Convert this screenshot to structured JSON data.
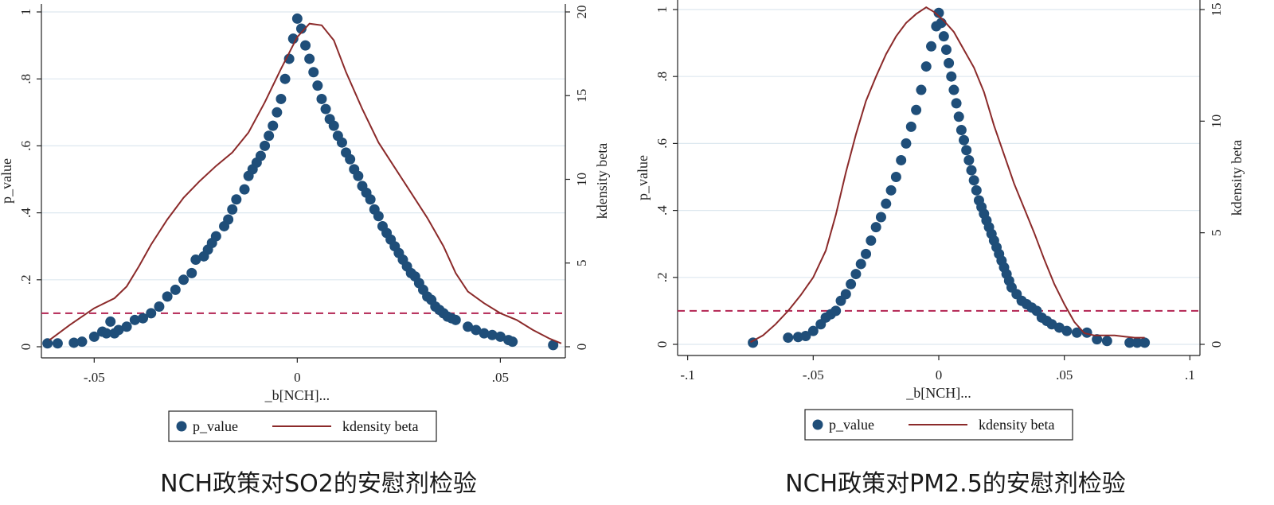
{
  "chart_data": [
    {
      "type": "scatter",
      "caption": "NCH政策对SO2的安慰剂检验",
      "xlabel": "_b[NCH]...",
      "ylabel": "p_value",
      "y2label": "kdensity beta",
      "xlim": [
        -0.063,
        0.066
      ],
      "ylim": [
        0,
        1
      ],
      "y2lim": [
        0,
        20
      ],
      "xticks": [
        {
          "value": -0.05,
          "label": "-.05"
        },
        {
          "value": 0,
          "label": "0"
        },
        {
          "value": 0.05,
          "label": ".05"
        }
      ],
      "yticks": [
        {
          "value": 0,
          "label": "0"
        },
        {
          "value": 0.2,
          "label": ".2"
        },
        {
          "value": 0.4,
          "label": ".4"
        },
        {
          "value": 0.6,
          "label": ".6"
        },
        {
          "value": 0.8,
          "label": ".8"
        },
        {
          "value": 1,
          "label": "1"
        }
      ],
      "y2ticks": [
        {
          "value": 0,
          "label": "0"
        },
        {
          "value": 5,
          "label": "5"
        },
        {
          "value": 10,
          "label": "10"
        },
        {
          "value": 15,
          "label": "15"
        },
        {
          "value": 20,
          "label": "20"
        }
      ],
      "grid": true,
      "reference_line": {
        "y": 0.1,
        "style": "dashed",
        "color": "#b22452"
      },
      "legend": {
        "position": "bottom",
        "entries": [
          {
            "label": "p_value",
            "marker": "dot"
          },
          {
            "label": "kdensity beta",
            "marker": "line"
          }
        ]
      },
      "colors": {
        "points": "#1f4e79",
        "density": "#8b2a2a",
        "grid": "#dde8ef"
      },
      "p_value_points": [
        [
          -0.0615,
          0.01
        ],
        [
          -0.059,
          0.01
        ],
        [
          -0.055,
          0.012
        ],
        [
          -0.053,
          0.015
        ],
        [
          -0.05,
          0.03
        ],
        [
          -0.048,
          0.045
        ],
        [
          -0.047,
          0.04
        ],
        [
          -0.046,
          0.075
        ],
        [
          -0.045,
          0.04
        ],
        [
          -0.044,
          0.05
        ],
        [
          -0.042,
          0.06
        ],
        [
          -0.04,
          0.08
        ],
        [
          -0.038,
          0.085
        ],
        [
          -0.036,
          0.1
        ],
        [
          -0.034,
          0.12
        ],
        [
          -0.032,
          0.15
        ],
        [
          -0.03,
          0.17
        ],
        [
          -0.028,
          0.2
        ],
        [
          -0.026,
          0.22
        ],
        [
          -0.025,
          0.26
        ],
        [
          -0.023,
          0.27
        ],
        [
          -0.022,
          0.29
        ],
        [
          -0.021,
          0.31
        ],
        [
          -0.02,
          0.33
        ],
        [
          -0.018,
          0.36
        ],
        [
          -0.017,
          0.38
        ],
        [
          -0.016,
          0.41
        ],
        [
          -0.015,
          0.44
        ],
        [
          -0.013,
          0.47
        ],
        [
          -0.012,
          0.51
        ],
        [
          -0.011,
          0.53
        ],
        [
          -0.01,
          0.55
        ],
        [
          -0.009,
          0.57
        ],
        [
          -0.008,
          0.6
        ],
        [
          -0.007,
          0.63
        ],
        [
          -0.006,
          0.66
        ],
        [
          -0.005,
          0.7
        ],
        [
          -0.004,
          0.74
        ],
        [
          -0.003,
          0.8
        ],
        [
          -0.002,
          0.86
        ],
        [
          -0.001,
          0.92
        ],
        [
          0,
          0.98
        ],
        [
          0.001,
          0.95
        ],
        [
          0.002,
          0.9
        ],
        [
          0.003,
          0.86
        ],
        [
          0.004,
          0.82
        ],
        [
          0.005,
          0.78
        ],
        [
          0.006,
          0.74
        ],
        [
          0.007,
          0.71
        ],
        [
          0.008,
          0.68
        ],
        [
          0.009,
          0.66
        ],
        [
          0.01,
          0.63
        ],
        [
          0.011,
          0.61
        ],
        [
          0.012,
          0.58
        ],
        [
          0.013,
          0.56
        ],
        [
          0.014,
          0.53
        ],
        [
          0.015,
          0.51
        ],
        [
          0.016,
          0.48
        ],
        [
          0.017,
          0.46
        ],
        [
          0.018,
          0.44
        ],
        [
          0.019,
          0.41
        ],
        [
          0.02,
          0.39
        ],
        [
          0.021,
          0.36
        ],
        [
          0.022,
          0.34
        ],
        [
          0.023,
          0.32
        ],
        [
          0.024,
          0.3
        ],
        [
          0.025,
          0.28
        ],
        [
          0.026,
          0.26
        ],
        [
          0.027,
          0.24
        ],
        [
          0.028,
          0.22
        ],
        [
          0.029,
          0.21
        ],
        [
          0.03,
          0.19
        ],
        [
          0.031,
          0.17
        ],
        [
          0.032,
          0.15
        ],
        [
          0.033,
          0.14
        ],
        [
          0.034,
          0.12
        ],
        [
          0.035,
          0.11
        ],
        [
          0.036,
          0.1
        ],
        [
          0.037,
          0.09
        ],
        [
          0.038,
          0.085
        ],
        [
          0.039,
          0.08
        ],
        [
          0.042,
          0.06
        ],
        [
          0.044,
          0.05
        ],
        [
          0.046,
          0.04
        ],
        [
          0.048,
          0.035
        ],
        [
          0.05,
          0.03
        ],
        [
          0.052,
          0.02
        ],
        [
          0.053,
          0.015
        ],
        [
          0.063,
          0.005
        ]
      ],
      "density_curve": [
        [
          -0.061,
          0.4
        ],
        [
          -0.056,
          1.3
        ],
        [
          -0.05,
          2.3
        ],
        [
          -0.045,
          2.9
        ],
        [
          -0.042,
          3.6
        ],
        [
          -0.039,
          4.8
        ],
        [
          -0.036,
          6.1
        ],
        [
          -0.032,
          7.6
        ],
        [
          -0.028,
          8.9
        ],
        [
          -0.024,
          9.9
        ],
        [
          -0.02,
          10.8
        ],
        [
          -0.016,
          11.6
        ],
        [
          -0.012,
          12.8
        ],
        [
          -0.008,
          14.6
        ],
        [
          -0.004,
          16.6
        ],
        [
          0,
          18.5
        ],
        [
          0.003,
          19.3
        ],
        [
          0.006,
          19.2
        ],
        [
          0.009,
          18.3
        ],
        [
          0.012,
          16.4
        ],
        [
          0.016,
          14.2
        ],
        [
          0.02,
          12.2
        ],
        [
          0.024,
          10.7
        ],
        [
          0.028,
          9.2
        ],
        [
          0.032,
          7.7
        ],
        [
          0.036,
          6.0
        ],
        [
          0.039,
          4.4
        ],
        [
          0.042,
          3.3
        ],
        [
          0.046,
          2.6
        ],
        [
          0.05,
          2.0
        ],
        [
          0.054,
          1.6
        ],
        [
          0.058,
          1.0
        ],
        [
          0.062,
          0.5
        ],
        [
          0.065,
          0.2
        ]
      ]
    },
    {
      "type": "scatter",
      "caption": "NCH政策对PM2.5的安慰剂检验",
      "xlabel": "_b[NCH]...",
      "ylabel": "p_value",
      "y2label": "kdensity beta",
      "xlim": [
        -0.104,
        0.104
      ],
      "ylim": [
        0,
        1
      ],
      "y2lim": [
        0,
        15
      ],
      "xticks": [
        {
          "value": -0.1,
          "label": "-.1"
        },
        {
          "value": -0.05,
          "label": "-.05"
        },
        {
          "value": 0,
          "label": "0"
        },
        {
          "value": 0.05,
          "label": ".05"
        },
        {
          "value": 0.1,
          "label": ".1"
        }
      ],
      "yticks": [
        {
          "value": 0,
          "label": "0"
        },
        {
          "value": 0.2,
          "label": ".2"
        },
        {
          "value": 0.4,
          "label": ".4"
        },
        {
          "value": 0.6,
          "label": ".6"
        },
        {
          "value": 0.8,
          "label": ".8"
        },
        {
          "value": 1,
          "label": "1"
        }
      ],
      "y2ticks": [
        {
          "value": 0,
          "label": "0"
        },
        {
          "value": 5,
          "label": "5"
        },
        {
          "value": 10,
          "label": "10"
        },
        {
          "value": 15,
          "label": "15"
        }
      ],
      "grid": true,
      "reference_line": {
        "y": 0.1,
        "style": "dashed",
        "color": "#b22452"
      },
      "legend": {
        "position": "bottom",
        "entries": [
          {
            "label": "p_value",
            "marker": "dot"
          },
          {
            "label": "kdensity beta",
            "marker": "line"
          }
        ]
      },
      "colors": {
        "points": "#1f4e79",
        "density": "#8b2a2a",
        "grid": "#dde8ef"
      },
      "p_value_points": [
        [
          -0.074,
          0.005
        ],
        [
          -0.06,
          0.02
        ],
        [
          -0.056,
          0.022
        ],
        [
          -0.053,
          0.025
        ],
        [
          -0.05,
          0.04
        ],
        [
          -0.047,
          0.06
        ],
        [
          -0.045,
          0.08
        ],
        [
          -0.043,
          0.09
        ],
        [
          -0.041,
          0.1
        ],
        [
          -0.039,
          0.13
        ],
        [
          -0.037,
          0.15
        ],
        [
          -0.035,
          0.18
        ],
        [
          -0.033,
          0.21
        ],
        [
          -0.031,
          0.24
        ],
        [
          -0.029,
          0.27
        ],
        [
          -0.027,
          0.31
        ],
        [
          -0.025,
          0.35
        ],
        [
          -0.023,
          0.38
        ],
        [
          -0.021,
          0.42
        ],
        [
          -0.019,
          0.46
        ],
        [
          -0.017,
          0.5
        ],
        [
          -0.015,
          0.55
        ],
        [
          -0.013,
          0.6
        ],
        [
          -0.011,
          0.65
        ],
        [
          -0.009,
          0.7
        ],
        [
          -0.007,
          0.76
        ],
        [
          -0.005,
          0.83
        ],
        [
          -0.003,
          0.89
        ],
        [
          -0.001,
          0.95
        ],
        [
          0,
          0.99
        ],
        [
          0.001,
          0.96
        ],
        [
          0.002,
          0.92
        ],
        [
          0.003,
          0.88
        ],
        [
          0.004,
          0.84
        ],
        [
          0.005,
          0.8
        ],
        [
          0.006,
          0.76
        ],
        [
          0.007,
          0.72
        ],
        [
          0.008,
          0.68
        ],
        [
          0.009,
          0.64
        ],
        [
          0.01,
          0.61
        ],
        [
          0.011,
          0.58
        ],
        [
          0.012,
          0.55
        ],
        [
          0.013,
          0.52
        ],
        [
          0.014,
          0.49
        ],
        [
          0.015,
          0.46
        ],
        [
          0.016,
          0.43
        ],
        [
          0.017,
          0.41
        ],
        [
          0.018,
          0.39
        ],
        [
          0.019,
          0.37
        ],
        [
          0.02,
          0.35
        ],
        [
          0.021,
          0.33
        ],
        [
          0.022,
          0.31
        ],
        [
          0.023,
          0.29
        ],
        [
          0.024,
          0.27
        ],
        [
          0.025,
          0.25
        ],
        [
          0.026,
          0.23
        ],
        [
          0.027,
          0.21
        ],
        [
          0.028,
          0.19
        ],
        [
          0.029,
          0.17
        ],
        [
          0.031,
          0.15
        ],
        [
          0.033,
          0.13
        ],
        [
          0.035,
          0.12
        ],
        [
          0.037,
          0.11
        ],
        [
          0.039,
          0.1
        ],
        [
          0.041,
          0.08
        ],
        [
          0.043,
          0.07
        ],
        [
          0.045,
          0.06
        ],
        [
          0.048,
          0.05
        ],
        [
          0.051,
          0.04
        ],
        [
          0.055,
          0.035
        ],
        [
          0.059,
          0.035
        ],
        [
          0.063,
          0.015
        ],
        [
          0.067,
          0.01
        ],
        [
          0.076,
          0.005
        ],
        [
          0.079,
          0.005
        ],
        [
          0.082,
          0.005
        ]
      ],
      "density_curve": [
        [
          -0.075,
          0.1
        ],
        [
          -0.07,
          0.4
        ],
        [
          -0.065,
          0.9
        ],
        [
          -0.06,
          1.5
        ],
        [
          -0.055,
          2.2
        ],
        [
          -0.05,
          3.0
        ],
        [
          -0.045,
          4.2
        ],
        [
          -0.041,
          5.8
        ],
        [
          -0.037,
          7.7
        ],
        [
          -0.033,
          9.4
        ],
        [
          -0.029,
          10.9
        ],
        [
          -0.025,
          12.0
        ],
        [
          -0.021,
          13.0
        ],
        [
          -0.017,
          13.8
        ],
        [
          -0.013,
          14.4
        ],
        [
          -0.009,
          14.8
        ],
        [
          -0.005,
          15.1
        ],
        [
          -0.002,
          14.9
        ],
        [
          0.002,
          14.5
        ],
        [
          0.006,
          14.0
        ],
        [
          0.01,
          13.2
        ],
        [
          0.014,
          12.4
        ],
        [
          0.018,
          11.3
        ],
        [
          0.022,
          9.8
        ],
        [
          0.026,
          8.5
        ],
        [
          0.03,
          7.2
        ],
        [
          0.034,
          6.1
        ],
        [
          0.038,
          5.0
        ],
        [
          0.042,
          3.8
        ],
        [
          0.046,
          2.7
        ],
        [
          0.05,
          1.8
        ],
        [
          0.054,
          1.0
        ],
        [
          0.058,
          0.5
        ],
        [
          0.062,
          0.4
        ],
        [
          0.066,
          0.4
        ],
        [
          0.07,
          0.4
        ],
        [
          0.074,
          0.35
        ],
        [
          0.078,
          0.3
        ],
        [
          0.082,
          0.3
        ]
      ]
    }
  ]
}
